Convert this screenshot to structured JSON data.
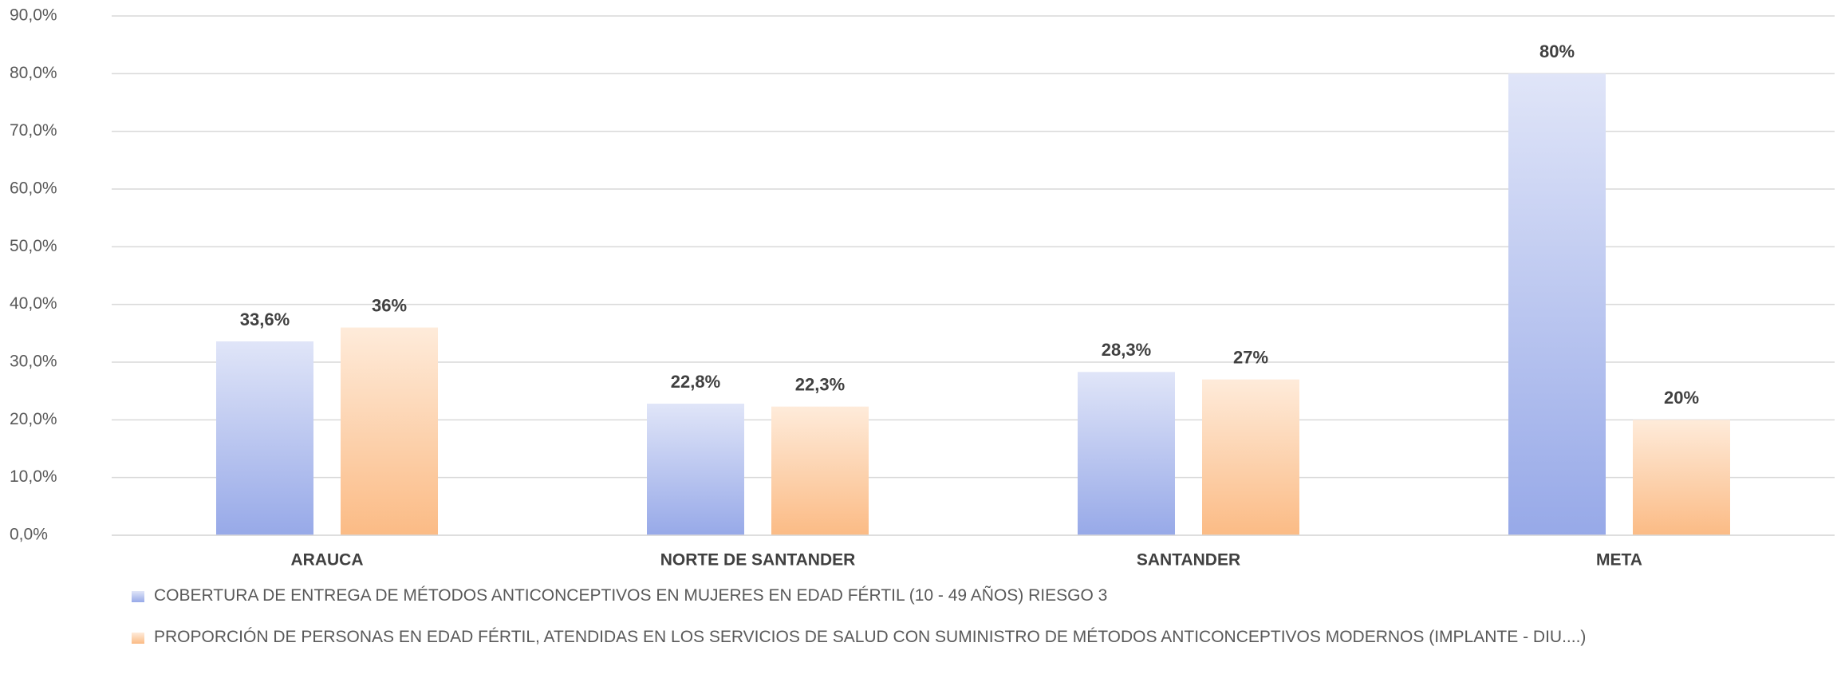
{
  "chart_data": {
    "type": "bar",
    "categories": [
      "ARAUCA",
      "NORTE DE SANTANDER",
      "SANTANDER",
      "META"
    ],
    "series": [
      {
        "name": "COBERTURA DE ENTREGA DE MÉTODOS ANTICONCEPTIVOS EN MUJERES EN EDAD FÉRTIL (10 - 49 AÑOS) RIESGO 3",
        "color": "#97a9e8",
        "values": [
          33.6,
          22.8,
          28.3,
          80
        ],
        "value_labels": [
          "33,6%",
          "22,8%",
          "28,3%",
          "80%"
        ]
      },
      {
        "name": "PROPORCIÓN DE PERSONAS EN EDAD FÉRTIL, ATENDIDAS EN LOS SERVICIOS DE SALUD CON SUMINISTRO DE MÉTODOS ANTICONCEPTIVOS MODERNOS (IMPLANTE - DIU....)",
        "color": "#fbbb85",
        "values": [
          36,
          22.3,
          27,
          20
        ],
        "value_labels": [
          "36%",
          "22,3%",
          "27%",
          "20%"
        ]
      }
    ],
    "ylim": [
      0,
      90
    ],
    "yticks": [
      {
        "value": 0,
        "label": "0,0%"
      },
      {
        "value": 10,
        "label": "10,0%"
      },
      {
        "value": 20,
        "label": "20,0%"
      },
      {
        "value": 30,
        "label": "30,0%"
      },
      {
        "value": 40,
        "label": "40,0%"
      },
      {
        "value": 50,
        "label": "50,0%"
      },
      {
        "value": 60,
        "label": "60,0%"
      },
      {
        "value": 70,
        "label": "70,0%"
      },
      {
        "value": 80,
        "label": "80,0%"
      },
      {
        "value": 90,
        "label": "90,0%"
      }
    ],
    "grid": true,
    "legend": "bottom"
  }
}
